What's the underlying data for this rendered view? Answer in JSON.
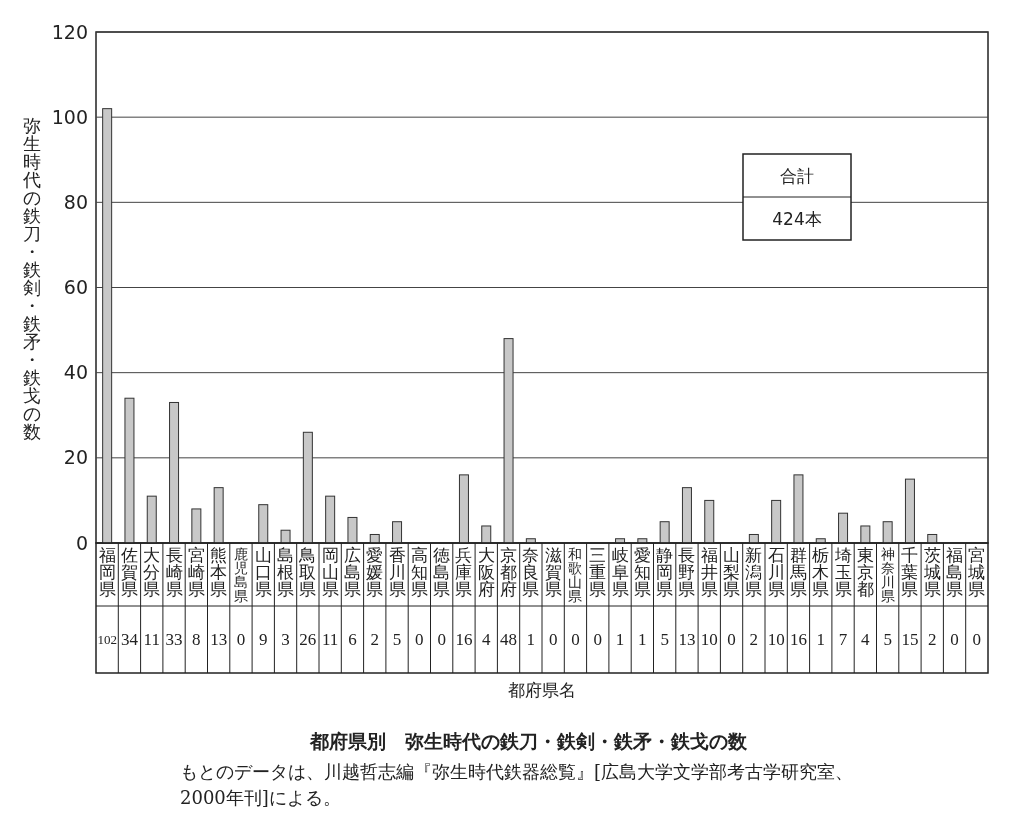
{
  "chart_data": {
    "type": "bar",
    "title": "都府県別　弥生時代の鉄刀・鉄剣・鉄矛・鉄戈の数",
    "xlabel": "都府県名",
    "ylabel": "弥生時代の鉄刀・鉄剣・鉄矛・鉄戈の数",
    "categories": [
      "福岡県",
      "佐賀県",
      "大分県",
      "長崎県",
      "宮崎県",
      "熊本県",
      "鹿児島県",
      "山口県",
      "島根県",
      "鳥取県",
      "岡山県",
      "広島県",
      "愛媛県",
      "香川県",
      "高知県",
      "徳島県",
      "兵庫県",
      "大阪府",
      "京都府",
      "奈良県",
      "滋賀県",
      "和歌山県",
      "三重県",
      "岐阜県",
      "愛知県",
      "静岡県",
      "長野県",
      "福井県",
      "山梨県",
      "新潟県",
      "石川県",
      "群馬県",
      "栃木県",
      "埼玉県",
      "東京都",
      "神奈川県",
      "千葉県",
      "茨城県",
      "福島県",
      "宮城県"
    ],
    "values": [
      102,
      34,
      11,
      33,
      8,
      13,
      0,
      9,
      3,
      26,
      11,
      6,
      2,
      5,
      0,
      0,
      16,
      4,
      48,
      1,
      0,
      0,
      0,
      1,
      1,
      5,
      13,
      10,
      0,
      2,
      10,
      16,
      1,
      7,
      4,
      5,
      15,
      2,
      0,
      0
    ],
    "color": "#c8c8c8",
    "ylim": [
      0,
      120
    ],
    "yticks": [
      0,
      20,
      40,
      60,
      80,
      100,
      120
    ],
    "grid": "y",
    "data_labels": true,
    "annotations": [
      "合計",
      "424本",
      "もとのデータは、川越哲志編『弥生時代鉄器総覧』[広島大学文学部考古学研究室、2000年刊]による。"
    ]
  }
}
